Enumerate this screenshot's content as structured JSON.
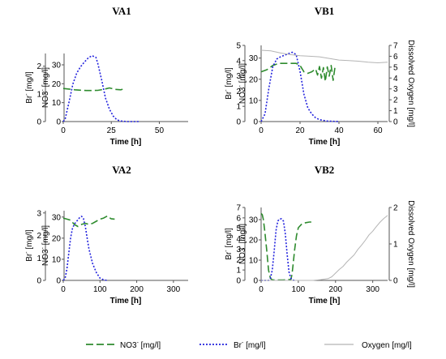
{
  "colors": {
    "nitrate": "#2e8b2e",
    "bromide": "#2222dd",
    "oxygen": "#b4b4b4",
    "axis": "#555555"
  },
  "legend": [
    {
      "key": "nitrate",
      "label": "NO3- [mg/l]"
    },
    {
      "key": "bromide",
      "label": "Br- [mg/l]"
    },
    {
      "key": "oxygen",
      "label": "Oxygen [mg/l]"
    }
  ],
  "chart_data": [
    {
      "type": "line",
      "title": "VA1",
      "xlabel": "Time [h]",
      "ylabel_left": "Br- [mg/l]",
      "ylabel_no3": "NO3- [mg/l]",
      "xlim": [
        0,
        65
      ],
      "xticks": [
        0,
        25,
        50
      ],
      "br_lim": [
        0,
        2.46
      ],
      "br_ticks": [
        0,
        1,
        2
      ],
      "no3_lim": [
        0,
        36
      ],
      "no3_ticks": [
        0,
        10,
        20,
        30
      ],
      "series": [
        {
          "key": "nitrate",
          "axis": "no3",
          "x": [
            0,
            3,
            6,
            9,
            12,
            15,
            18,
            21,
            24,
            27,
            30,
            32
          ],
          "y": [
            17.5,
            17.2,
            16.8,
            16.6,
            16.4,
            16.4,
            16.5,
            17.0,
            17.8,
            17.0,
            16.8,
            17.5
          ]
        },
        {
          "key": "bromide",
          "axis": "br",
          "x": [
            0,
            1,
            3,
            5,
            7,
            9,
            11,
            13,
            15,
            17,
            18,
            20,
            22,
            24,
            26,
            28,
            30,
            33,
            40
          ],
          "y": [
            0,
            0.1,
            0.7,
            1.35,
            1.75,
            1.98,
            2.15,
            2.3,
            2.38,
            2.32,
            2.1,
            1.5,
            0.85,
            0.45,
            0.2,
            0.06,
            0.02,
            0,
            0
          ]
        }
      ]
    },
    {
      "type": "line",
      "title": "VB1",
      "xlabel": "Time [h]",
      "ylabel_left": "Br- [mg/l]",
      "ylabel_no3": "NO3- [mg/l]",
      "ylabel_right": "Dissolved Oxygen [mg/l]",
      "xlim": [
        0,
        65
      ],
      "xticks": [
        0,
        20,
        40,
        60
      ],
      "br_lim": [
        0,
        5
      ],
      "br_ticks": [
        0,
        1,
        2,
        3,
        4,
        5
      ],
      "no3_lim": [
        0,
        36
      ],
      "no3_ticks": [
        0,
        10,
        20,
        30
      ],
      "o2_lim": [
        0,
        7
      ],
      "o2_ticks": [
        0,
        1,
        2,
        3,
        4,
        5,
        6,
        7
      ],
      "series": [
        {
          "key": "nitrate",
          "axis": "no3",
          "x": [
            0,
            3,
            6,
            9,
            12,
            15,
            18,
            20,
            22,
            24,
            26,
            28,
            29,
            30,
            31,
            32,
            33,
            34,
            35,
            36,
            37,
            38
          ],
          "y": [
            23.5,
            24.5,
            26.5,
            27.5,
            27.5,
            27.5,
            27.5,
            26.5,
            23.5,
            22.8,
            23.5,
            24.8,
            22.0,
            26.0,
            20.5,
            25.5,
            19.0,
            25.8,
            21.5,
            26.5,
            19.5,
            26.0
          ]
        },
        {
          "key": "bromide",
          "axis": "br",
          "x": [
            0,
            2,
            4,
            6,
            8,
            10,
            12,
            14,
            16,
            18,
            20,
            22,
            24,
            26,
            28,
            30,
            34,
            40
          ],
          "y": [
            0,
            0.5,
            2.2,
            3.6,
            4.1,
            4.25,
            4.35,
            4.45,
            4.55,
            4.4,
            3.3,
            1.8,
            0.9,
            0.5,
            0.25,
            0.12,
            0.03,
            0
          ]
        },
        {
          "key": "oxygen",
          "axis": "o2",
          "x": [
            0,
            5,
            10,
            15,
            20,
            25,
            30,
            35,
            40,
            45,
            50,
            55,
            60,
            65
          ],
          "y": [
            6.55,
            6.5,
            6.3,
            6.15,
            6.05,
            6.0,
            5.95,
            5.8,
            5.65,
            5.6,
            5.55,
            5.45,
            5.4,
            5.45
          ]
        }
      ]
    },
    {
      "type": "line",
      "title": "VA2",
      "xlabel": "Time [h]",
      "ylabel_left": "Br- [mg/l]",
      "ylabel_no3": "NO3- [mg/l]",
      "xlim": [
        0,
        340
      ],
      "xticks": [
        0,
        100,
        200,
        300
      ],
      "br_lim": [
        0,
        3.1
      ],
      "br_ticks": [
        0,
        1,
        2,
        3
      ],
      "no3_lim": [
        0,
        33
      ],
      "no3_ticks": [
        0,
        10,
        20,
        30
      ],
      "series": [
        {
          "key": "nitrate",
          "axis": "no3",
          "x": [
            0,
            10,
            20,
            30,
            40,
            50,
            60,
            70,
            80,
            90,
            100,
            110,
            120,
            130,
            140
          ],
          "y": [
            29.5,
            29.0,
            28.5,
            26.5,
            25.5,
            26.5,
            27.0,
            26.5,
            27.0,
            28.0,
            29.0,
            29.5,
            30.5,
            29.2,
            29.0
          ]
        },
        {
          "key": "bromide",
          "axis": "br",
          "x": [
            0,
            5,
            10,
            15,
            20,
            25,
            30,
            35,
            40,
            45,
            50,
            55,
            60,
            65,
            70,
            80,
            90,
            100,
            110,
            120
          ],
          "y": [
            0,
            0.1,
            0.5,
            1.2,
            1.9,
            2.3,
            2.5,
            2.6,
            2.7,
            2.8,
            2.85,
            2.75,
            2.4,
            1.9,
            1.4,
            0.75,
            0.35,
            0.1,
            0.02,
            0
          ]
        }
      ]
    },
    {
      "type": "line",
      "title": "VB2",
      "xlabel": "Time [h]",
      "ylabel_left": "Br- [mg/l]",
      "ylabel_no3": "NO3- [mg/l]",
      "ylabel_right": "Dissolved Oxygen [mg/l]",
      "xlim": [
        0,
        340
      ],
      "xticks": [
        0,
        100,
        200,
        300
      ],
      "br_lim": [
        0,
        7
      ],
      "br_ticks": [
        0,
        1,
        2,
        3,
        4,
        5,
        6,
        7
      ],
      "no3_lim": [
        0,
        36
      ],
      "no3_ticks": [
        0,
        10,
        20,
        30
      ],
      "o2_lim": [
        0,
        2
      ],
      "o2_ticks": [
        0,
        1,
        2
      ],
      "series": [
        {
          "key": "nitrate",
          "axis": "no3",
          "x": [
            0,
            3,
            6,
            10,
            15,
            20,
            25,
            30,
            40,
            60,
            80,
            83,
            86,
            90,
            95,
            100,
            110,
            120,
            130,
            135
          ],
          "y": [
            33,
            32.5,
            30,
            24,
            15,
            5,
            1,
            0.3,
            0.2,
            0.2,
            0.5,
            3,
            8,
            15,
            22,
            26,
            28,
            28.5,
            28.8,
            28.8
          ]
        },
        {
          "key": "bromide",
          "axis": "br",
          "x": [
            0,
            20,
            25,
            30,
            35,
            40,
            45,
            50,
            55,
            60,
            65,
            70,
            75,
            80,
            85,
            90
          ],
          "y": [
            0,
            0,
            0.2,
            1.0,
            2.8,
            4.8,
            5.7,
            5.9,
            5.9,
            5.7,
            4.5,
            2.5,
            0.8,
            0.2,
            0.02,
            0
          ]
        },
        {
          "key": "oxygen",
          "axis": "o2",
          "x": [
            0,
            140,
            160,
            180,
            190,
            200,
            210,
            220,
            230,
            240,
            250,
            260,
            270,
            280,
            290,
            300,
            310,
            320,
            330,
            340
          ],
          "y": [
            0,
            0,
            0.02,
            0.05,
            0.1,
            0.2,
            0.3,
            0.38,
            0.5,
            0.6,
            0.7,
            0.85,
            0.97,
            1.1,
            1.25,
            1.35,
            1.48,
            1.6,
            1.7,
            1.78
          ]
        }
      ]
    }
  ]
}
